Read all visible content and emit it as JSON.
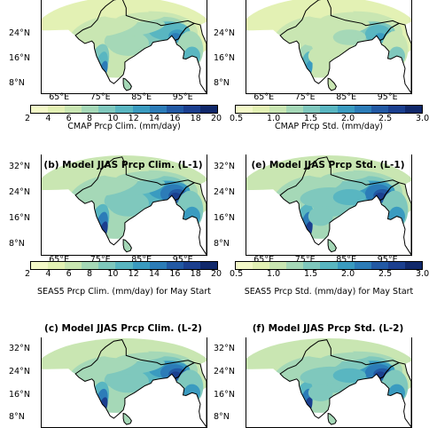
{
  "palette": [
    "#f4f9c8",
    "#e3f1b4",
    "#c9e6b2",
    "#a5d8b7",
    "#7fc8bd",
    "#59b6c1",
    "#3a9bc0",
    "#2c7cb8",
    "#2259a4",
    "#1b3f8f",
    "#10286b"
  ],
  "chart_data": [
    {
      "id": "a",
      "type": "heatmap",
      "title": "",
      "y_ticks": [
        "24°N",
        "16°N",
        "8°N"
      ],
      "x_ticks": [
        "65°E",
        "75°E",
        "85°E",
        "95°E"
      ],
      "colorbar_ticks": [
        "2",
        "4",
        "6",
        "8",
        "10",
        "12",
        "14",
        "16",
        "18",
        "20"
      ],
      "colorbar_label": "CMAP Prcp Clim. (mm/day)",
      "colorbar_range": [
        2,
        20
      ],
      "intensity": 0.9
    },
    {
      "id": "d",
      "type": "heatmap",
      "title": "",
      "y_ticks": [
        "24°N",
        "16°N",
        "8°N"
      ],
      "x_ticks": [
        "65°E",
        "75°E",
        "85°E",
        "95°E"
      ],
      "colorbar_ticks": [
        "0.5",
        "1.0",
        "1.5",
        "2.0",
        "2.5",
        "3.0"
      ],
      "colorbar_label": "CMAP Prcp Std. (mm/day)",
      "colorbar_range": [
        0.5,
        3.0
      ],
      "intensity": 0.75
    },
    {
      "id": "b",
      "type": "heatmap",
      "title": "(b) Model JJAS Prcp Clim. (L-1)",
      "y_ticks": [
        "32°N",
        "24°N",
        "16°N",
        "8°N"
      ],
      "x_ticks": [
        "65°E",
        "75°E",
        "85°E",
        "95°E"
      ],
      "colorbar_ticks": [
        "2",
        "4",
        "6",
        "8",
        "10",
        "12",
        "14",
        "16",
        "18",
        "20"
      ],
      "colorbar_label": "SEAS5 Prcp Clim. (mm/day) for May Start",
      "colorbar_range": [
        2,
        20
      ],
      "intensity": 1.0
    },
    {
      "id": "e",
      "type": "heatmap",
      "title": "(e) Model JJAS Prcp Std. (L-1)",
      "y_ticks": [
        "32°N",
        "24°N",
        "16°N",
        "8°N"
      ],
      "x_ticks": [
        "65°E",
        "75°E",
        "85°E",
        "95°E"
      ],
      "colorbar_ticks": [
        "0.5",
        "1.0",
        "1.5",
        "2.0",
        "2.5",
        "3.0"
      ],
      "colorbar_label": "SEAS5 Prcp Std. (mm/day) for May Start",
      "colorbar_range": [
        0.5,
        3.0
      ],
      "intensity": 1.0
    },
    {
      "id": "c",
      "type": "heatmap",
      "title": "(c) Model JJAS Prcp Clim. (L-2)",
      "y_ticks": [
        "32°N",
        "24°N",
        "16°N",
        "8°N"
      ],
      "x_ticks": [],
      "colorbar_ticks": [],
      "colorbar_label": "",
      "colorbar_range": [
        2,
        20
      ],
      "intensity": 1.0
    },
    {
      "id": "f",
      "type": "heatmap",
      "title": "(f) Model JJAS Prcp Std. (L-2)",
      "y_ticks": [
        "32°N",
        "24°N",
        "16°N",
        "8°N"
      ],
      "x_ticks": [],
      "colorbar_ticks": [],
      "colorbar_label": "",
      "colorbar_range": [
        0.5,
        3.0
      ],
      "intensity": 0.95
    }
  ]
}
